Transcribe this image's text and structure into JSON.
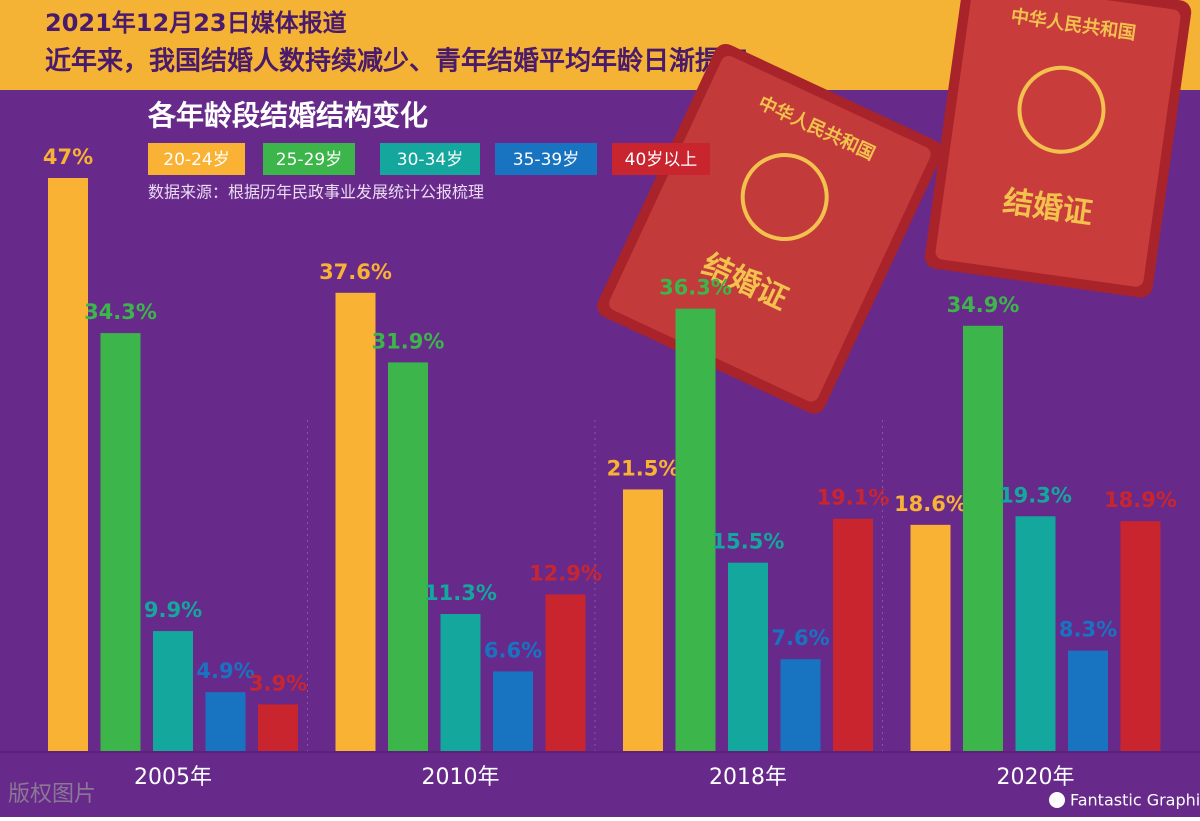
{
  "header": {
    "date_line": "2021年12月23日媒体报道",
    "headline": "近年来，我国结婚人数持续减少、青年结婚平均年龄日渐提高"
  },
  "chart_data": {
    "type": "bar",
    "title": "各年龄段结婚结构变化",
    "source": "数据来源：根据历年民政事业发展统计公报梳理",
    "categories": [
      "2005年",
      "2010年",
      "2018年",
      "2020年"
    ],
    "series": [
      {
        "name": "20-24岁",
        "color": "#f9b233",
        "values": [
          47,
          37.6,
          21.5,
          18.6
        ],
        "value_labels": [
          "47%",
          "37.6%",
          "21.5%",
          "18.6%"
        ]
      },
      {
        "name": "25-29岁",
        "color": "#3cb54a",
        "values": [
          34.3,
          31.9,
          36.3,
          34.9
        ],
        "value_labels": [
          "34.3%",
          "31.9%",
          "36.3%",
          "34.9%"
        ]
      },
      {
        "name": "30-34岁",
        "color": "#14a79d",
        "values": [
          9.9,
          11.3,
          15.5,
          19.3
        ],
        "value_labels": [
          "9.9%",
          "11.3%",
          "15.5%",
          "19.3%"
        ]
      },
      {
        "name": "35-39岁",
        "color": "#1873c1",
        "values": [
          4.9,
          6.6,
          7.6,
          8.3
        ],
        "value_labels": [
          "4.9%",
          "6.6%",
          "7.6%",
          "8.3%"
        ]
      },
      {
        "name": "40岁以上",
        "color": "#c9252f",
        "values": [
          3.9,
          12.9,
          19.1,
          18.9
        ],
        "value_labels": [
          "3.9%",
          "12.9%",
          "19.1%",
          "18.9%"
        ]
      }
    ]
  },
  "certificate": {
    "issuer": "中华人民共和国",
    "name": "结婚证"
  },
  "footer": {
    "watermark": "版权图片",
    "brand": "Fantastic Graphics"
  }
}
